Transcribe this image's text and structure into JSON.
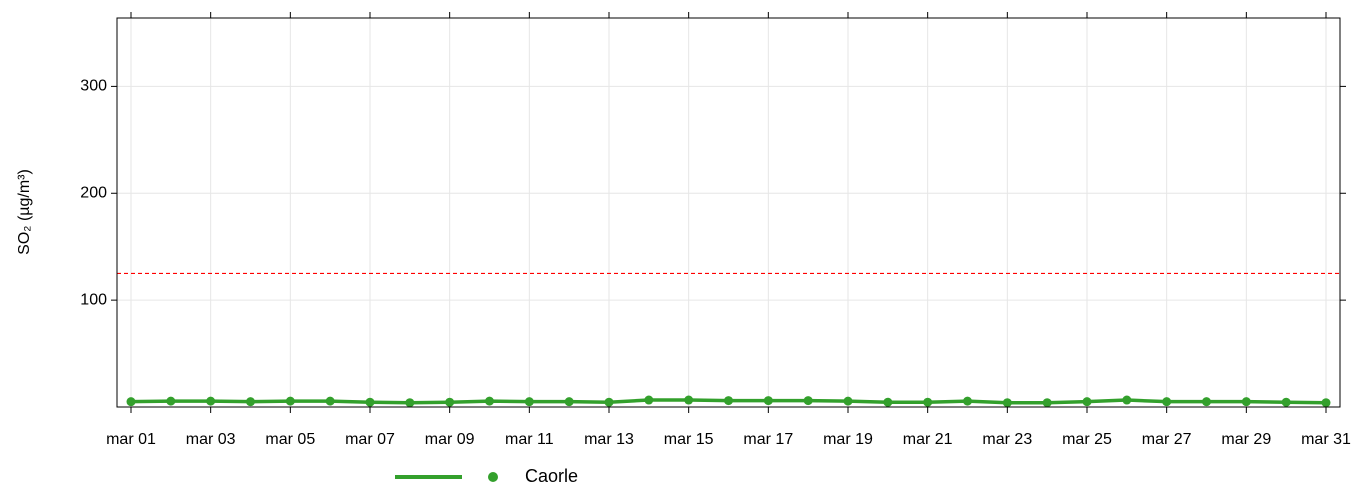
{
  "chart_data": {
    "type": "line",
    "categories": [
      "mar 01",
      null,
      "mar 03",
      null,
      "mar 05",
      null,
      "mar 07",
      null,
      "mar 09",
      null,
      "mar 11",
      null,
      "mar 13",
      null,
      "mar 15",
      null,
      "mar 17",
      null,
      "mar 19",
      null,
      "mar 21",
      null,
      "mar 23",
      null,
      "mar 25",
      null,
      "mar 27",
      null,
      "mar 29",
      null,
      "mar 31"
    ],
    "series": [
      {
        "name": "Caorle",
        "color": "#33a02c",
        "values": [
          5,
          5.5,
          5.5,
          5,
          5.5,
          5.5,
          4.5,
          4,
          4.5,
          5.5,
          5,
          5,
          4.5,
          6.5,
          6.5,
          6,
          6,
          6,
          5.5,
          4.5,
          4.5,
          5.5,
          4,
          4,
          5,
          6.5,
          5,
          5,
          5,
          4.5,
          4
        ]
      }
    ],
    "y_label": "SO₂ (µg/m³)",
    "ylim": [
      0,
      364
    ],
    "yticks": [
      100,
      200,
      300
    ],
    "grid": true,
    "reference_line": {
      "value": 125,
      "color": "#ff0000"
    },
    "legend": "bottom"
  }
}
